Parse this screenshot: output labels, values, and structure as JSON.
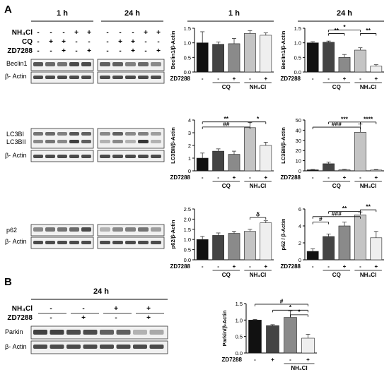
{
  "panels": {
    "A": "A",
    "B": "B"
  },
  "blots": {
    "headers_A": {
      "h1": "1 h",
      "h24": "24 h"
    },
    "header_B": "24 h",
    "treat_labels_A": {
      "nh4cl": "NH₄Cl",
      "cq": "CQ",
      "zd": "ZD7288"
    },
    "treat_labels_B": {
      "nh4cl": "NH₄Cl",
      "zd": "ZD7288"
    },
    "signs_A": {
      "nh4cl": [
        "-",
        "-",
        "-",
        "+",
        "+"
      ],
      "cq": [
        "-",
        "+",
        "+",
        "-",
        "-"
      ],
      "zd": [
        "-",
        "-",
        "+",
        "-",
        "+"
      ]
    },
    "signs_B": {
      "nh4cl": [
        "-",
        "-",
        "+",
        "+"
      ],
      "zd": [
        "-",
        "+",
        "-",
        "+"
      ]
    },
    "row_labels": {
      "beclin1": "Beclin1",
      "actin": "β- Actin",
      "lc3bi": "LC3BI",
      "lc3bii": "LC3BII",
      "p62": "p62",
      "parkin": "Parkin"
    }
  },
  "chart_data": [
    {
      "id": "beclin1-1h",
      "type": "bar",
      "time_header": "1 h",
      "ylabel": "Beclin1/β-Actin",
      "ylim": [
        0,
        1.5
      ],
      "yticks": [
        "0.0",
        "0.5",
        "1.0",
        "1.5"
      ],
      "values": [
        1.0,
        0.95,
        0.97,
        1.32,
        1.26
      ],
      "errors": [
        0.38,
        0.08,
        0.18,
        0.1,
        0.08
      ],
      "zd7288": [
        "-",
        "-",
        "+",
        "-",
        "+"
      ],
      "groups": [
        "CQ",
        "NH₄Cl"
      ],
      "colors": [
        "#111111",
        "#444444",
        "#8a8a8a",
        "#c4c4c4",
        "#efefef"
      ],
      "annotations": []
    },
    {
      "id": "beclin1-24h",
      "type": "bar",
      "time_header": "24 h",
      "ylabel": "Beclin1/β-Actin",
      "ylim": [
        0,
        1.5
      ],
      "yticks": [
        "0.0",
        "0.5",
        "1.0",
        "1.5"
      ],
      "values": [
        1.0,
        1.02,
        0.5,
        0.75,
        0.2
      ],
      "errors": [
        0.04,
        0.04,
        0.1,
        0.08,
        0.05
      ],
      "zd7288": [
        "-",
        "-",
        "+",
        "-",
        "+"
      ],
      "groups": [
        "CQ",
        "NH₄Cl"
      ],
      "colors": [
        "#111111",
        "#444444",
        "#8a8a8a",
        "#c4c4c4",
        "#efefef"
      ],
      "annotations": [
        {
          "text": "*",
          "from": 1,
          "to": 3,
          "y": 1.44
        },
        {
          "text": "**",
          "from": 1,
          "to": 2,
          "y": 1.32
        },
        {
          "text": "**",
          "from": 3,
          "to": 4,
          "y": 1.32
        }
      ]
    },
    {
      "id": "lc3-1h",
      "type": "bar",
      "ylabel": "LC3BII/β-Actin",
      "ylim": [
        0,
        4
      ],
      "yticks": [
        "0",
        "1",
        "2",
        "3",
        "4"
      ],
      "values": [
        1.0,
        1.55,
        1.3,
        3.4,
        2.0
      ],
      "errors": [
        0.4,
        0.18,
        0.25,
        0.4,
        0.25
      ],
      "zd7288": [
        "-",
        "-",
        "+",
        "-",
        "+"
      ],
      "groups": [
        "CQ",
        "NH₄Cl"
      ],
      "colors": [
        "#111111",
        "#444444",
        "#8a8a8a",
        "#c4c4c4",
        "#efefef"
      ],
      "annotations": [
        {
          "text": "**",
          "from": 0,
          "to": 3,
          "y": 3.85
        },
        {
          "text": "*",
          "from": 3,
          "to": 4,
          "y": 3.85
        },
        {
          "text": "##",
          "from": 0,
          "to": 3,
          "y": 3.45
        }
      ]
    },
    {
      "id": "lc3-24h",
      "type": "bar",
      "ylabel": "LC3BII/β-Actin",
      "ylim": [
        0,
        50
      ],
      "yticks": [
        "0",
        "10",
        "20",
        "30",
        "40",
        "50"
      ],
      "values": [
        1.0,
        7.0,
        1.0,
        38.0,
        0.8
      ],
      "errors": [
        0.4,
        1.5,
        0.5,
        8.0,
        0.5
      ],
      "zd7288": [
        "-",
        "-",
        "+",
        "-",
        "+"
      ],
      "groups": [
        "CQ",
        "NH₄Cl"
      ],
      "colors": [
        "#111111",
        "#444444",
        "#8a8a8a",
        "#c4c4c4",
        "#efefef"
      ],
      "annotations": [
        {
          "text": "****",
          "from": 3,
          "to": 4,
          "y": 48
        },
        {
          "text": "***",
          "from": 1,
          "to": 3,
          "y": 48
        },
        {
          "text": "###",
          "from": 0,
          "to": 3,
          "y": 43
        }
      ]
    },
    {
      "id": "p62-1h",
      "type": "bar",
      "ylabel": "p62/β-Actin",
      "ylim": [
        0,
        2.5
      ],
      "yticks": [
        "0.0",
        "0.5",
        "1.0",
        "1.5",
        "2.0",
        "2.5"
      ],
      "values": [
        1.0,
        1.2,
        1.3,
        1.4,
        1.82
      ],
      "errors": [
        0.15,
        0.12,
        0.1,
        0.1,
        0.1
      ],
      "zd7288": [
        "-",
        "-",
        "+",
        "-",
        "+"
      ],
      "groups": [
        "CQ",
        "NH₄Cl"
      ],
      "colors": [
        "#111111",
        "#444444",
        "#8a8a8a",
        "#c4c4c4",
        "#efefef"
      ],
      "annotations": [
        {
          "text": "δ",
          "from": 3,
          "to": 4,
          "y": 2.08
        }
      ]
    },
    {
      "id": "p62-24h",
      "type": "bar",
      "ylabel": "p62 / β-Actin",
      "ylim": [
        0,
        6
      ],
      "yticks": [
        "0",
        "2",
        "4",
        "6"
      ],
      "values": [
        1.0,
        2.75,
        4.0,
        5.3,
        2.6
      ],
      "errors": [
        0.3,
        0.3,
        0.45,
        0.35,
        0.75
      ],
      "zd7288": [
        "-",
        "-",
        "+",
        "-",
        "+"
      ],
      "groups": [
        "CQ",
        "NH₄Cl"
      ],
      "colors": [
        "#111111",
        "#444444",
        "#8a8a8a",
        "#c4c4c4",
        "#efefef"
      ],
      "annotations": [
        {
          "text": "**",
          "from": 3,
          "to": 4,
          "y": 5.9
        },
        {
          "text": "**",
          "from": 1,
          "to": 3,
          "y": 5.7
        },
        {
          "text": "###",
          "from": 0,
          "to": 3,
          "y": 5.1
        },
        {
          "text": "#",
          "from": 0,
          "to": 1,
          "y": 4.45
        }
      ]
    },
    {
      "id": "parkin-24h",
      "type": "bar",
      "ylabel": "Parkin/β-Actin",
      "ylim": [
        0,
        1.5
      ],
      "yticks": [
        "0.0",
        "0.5",
        "1.0",
        "1.5"
      ],
      "values": [
        1.0,
        0.83,
        1.08,
        0.45
      ],
      "errors": [
        0.02,
        0.03,
        0.2,
        0.12
      ],
      "zd7288": [
        "-",
        "+",
        "-",
        "+"
      ],
      "groups": [
        "NH₄Cl"
      ],
      "colors": [
        "#111111",
        "#444444",
        "#8a8a8a",
        "#efefef"
      ],
      "annotations": [
        {
          "text": "#",
          "from": 0,
          "to": 3,
          "y": 1.48
        },
        {
          "text": "*",
          "from": 1,
          "to": 3,
          "y": 1.3
        },
        {
          "text": "*",
          "from": 2,
          "to": 3,
          "y": 1.16
        }
      ]
    }
  ],
  "axis_common": {
    "zd_label": "ZD7288"
  }
}
